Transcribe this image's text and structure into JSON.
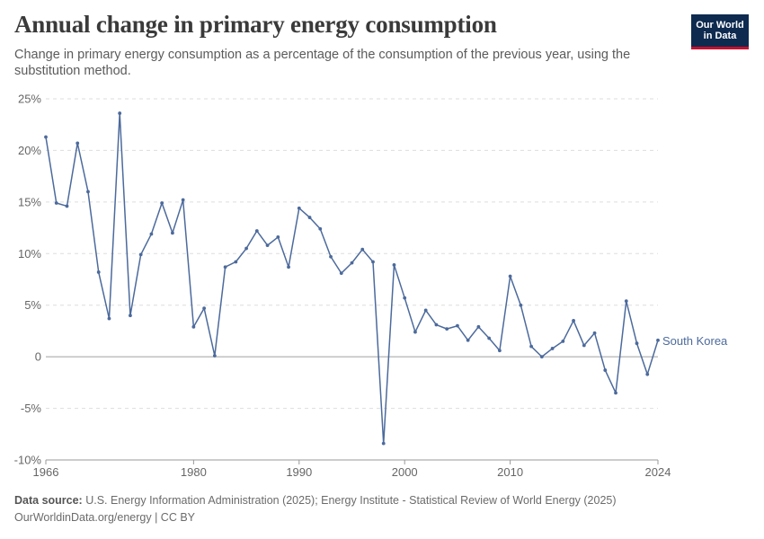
{
  "header": {
    "title": "Annual change in primary energy consumption",
    "subtitle": "Change in primary energy consumption as a percentage of the consumption of the previous year, using the substitution method.",
    "logo_line1": "Our World",
    "logo_line2": "in Data"
  },
  "footer": {
    "source_label": "Data source:",
    "source_text": "U.S. Energy Information Administration (2025); Energy Institute - Statistical Review of World Energy (2025)",
    "url_text": "OurWorldinData.org/energy | CC BY"
  },
  "colors": {
    "series": "#4c6a9c",
    "grid": "#dddddd",
    "zero_line": "#a0a0a0",
    "axis_text": "#666666",
    "logo_bg": "#0e2a4f",
    "logo_accent": "#c8102e"
  },
  "chart_data": {
    "type": "line",
    "x_ticks": [
      "1966",
      "1980",
      "1990",
      "2000",
      "2010",
      "2024"
    ],
    "y_ticks": [
      "-10%",
      "-5%",
      "0",
      "5%",
      "10%",
      "15%",
      "20%",
      "25%"
    ],
    "xlim": [
      1966,
      2024
    ],
    "ylim": [
      -10,
      25
    ],
    "grid": "horizontal dashed",
    "series": [
      {
        "name": "South Korea",
        "x": [
          1966,
          1967,
          1968,
          1969,
          1970,
          1971,
          1972,
          1973,
          1974,
          1975,
          1976,
          1977,
          1978,
          1979,
          1980,
          1981,
          1982,
          1983,
          1984,
          1985,
          1986,
          1987,
          1988,
          1989,
          1990,
          1991,
          1992,
          1993,
          1994,
          1995,
          1996,
          1997,
          1998,
          1999,
          2000,
          2001,
          2002,
          2003,
          2004,
          2005,
          2006,
          2007,
          2008,
          2009,
          2010,
          2011,
          2012,
          2013,
          2014,
          2015,
          2016,
          2017,
          2018,
          2019,
          2020,
          2021,
          2022,
          2023,
          2024
        ],
        "values": [
          21.3,
          14.9,
          14.6,
          20.7,
          16.0,
          8.2,
          3.7,
          23.6,
          4.0,
          9.9,
          11.9,
          14.9,
          12.0,
          15.2,
          2.9,
          4.7,
          0.1,
          8.7,
          9.2,
          10.5,
          12.2,
          10.8,
          11.6,
          8.7,
          14.4,
          13.5,
          12.4,
          9.7,
          8.1,
          9.1,
          10.4,
          9.2,
          -8.4,
          8.9,
          5.7,
          2.4,
          4.5,
          3.1,
          2.7,
          3.0,
          1.6,
          2.9,
          1.8,
          0.6,
          7.8,
          5.0,
          1.0,
          0.0,
          0.8,
          1.5,
          3.5,
          1.1,
          2.3,
          -1.3,
          -3.5,
          5.4,
          1.3,
          -1.7,
          1.6
        ]
      }
    ]
  }
}
